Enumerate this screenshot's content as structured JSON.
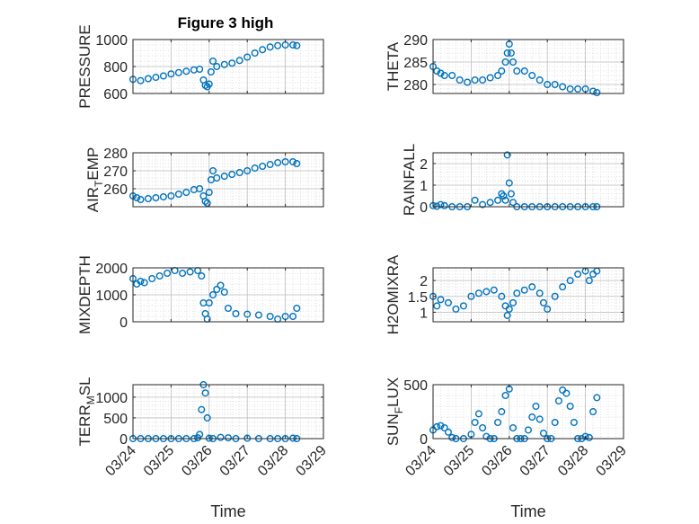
{
  "figure": {
    "title": "Figure 3 high"
  },
  "style": {
    "marker_color": "#0072BD",
    "axis_color": "#262626",
    "grid_color": "#d9d9d9"
  },
  "chart_data": [
    {
      "type": "scatter",
      "title": "Figure 3 high",
      "ylabel": "PRESSURE",
      "ylabel_sub": "",
      "xlabel": "",
      "xlim": [
        0,
        5
      ],
      "ylim": [
        600,
        1000
      ],
      "yticks": [
        600,
        800,
        1000
      ],
      "ytick_labels": [
        "600",
        "800",
        "1000"
      ],
      "xticks": [
        0,
        1,
        2,
        3,
        4,
        5
      ],
      "xtick_labels": [],
      "grid": true,
      "series": [
        {
          "x": [
            0.0,
            0.2,
            0.4,
            0.6,
            0.8,
            1.0,
            1.2,
            1.4,
            1.6,
            1.75,
            1.85,
            1.9,
            1.95,
            2.0,
            2.05,
            2.1,
            2.2,
            2.4,
            2.6,
            2.8,
            3.0,
            3.2,
            3.4,
            3.6,
            3.8,
            4.0,
            4.2,
            4.3
          ],
          "y": [
            705,
            695,
            710,
            720,
            730,
            745,
            755,
            765,
            775,
            780,
            700,
            660,
            650,
            670,
            760,
            840,
            800,
            815,
            825,
            845,
            870,
            900,
            925,
            945,
            955,
            960,
            960,
            955
          ]
        }
      ]
    },
    {
      "type": "scatter",
      "title": "",
      "ylabel": "THETA",
      "ylabel_sub": "",
      "xlabel": "",
      "xlim": [
        0,
        5
      ],
      "ylim": [
        278,
        290
      ],
      "yticks": [
        280,
        285,
        290
      ],
      "ytick_labels": [
        "280",
        "285",
        "290"
      ],
      "xticks": [
        0,
        1,
        2,
        3,
        4,
        5
      ],
      "xtick_labels": [],
      "grid": true,
      "series": [
        {
          "x": [
            0.0,
            0.1,
            0.2,
            0.3,
            0.5,
            0.7,
            0.9,
            1.1,
            1.3,
            1.5,
            1.7,
            1.8,
            1.9,
            1.95,
            2.0,
            2.05,
            2.1,
            2.2,
            2.4,
            2.6,
            2.8,
            3.0,
            3.2,
            3.4,
            3.6,
            3.8,
            4.0,
            4.2,
            4.3
          ],
          "y": [
            284,
            283,
            282.5,
            282,
            282,
            281,
            280.5,
            281,
            281,
            281.5,
            282,
            283,
            285,
            287,
            289,
            287,
            285,
            283,
            283,
            282,
            281,
            280,
            280,
            279.5,
            279,
            279,
            279,
            278.5,
            278.2
          ]
        }
      ]
    },
    {
      "type": "scatter",
      "title": "",
      "ylabel": "AIR",
      "ylabel_sub": "T",
      "ylabel_rest": "EMP",
      "xlabel": "",
      "xlim": [
        0,
        5
      ],
      "ylim": [
        250,
        280
      ],
      "yticks": [
        260,
        270,
        280
      ],
      "ytick_labels": [
        "260",
        "270",
        "280"
      ],
      "xticks": [
        0,
        1,
        2,
        3,
        4,
        5
      ],
      "xtick_labels": [],
      "grid": true,
      "series": [
        {
          "x": [
            0.0,
            0.1,
            0.2,
            0.4,
            0.6,
            0.8,
            1.0,
            1.2,
            1.4,
            1.6,
            1.75,
            1.85,
            1.9,
            1.95,
            2.0,
            2.05,
            2.1,
            2.2,
            2.4,
            2.6,
            2.8,
            3.0,
            3.2,
            3.4,
            3.6,
            3.8,
            4.0,
            4.2,
            4.3
          ],
          "y": [
            256,
            255,
            254,
            254.5,
            255,
            255.5,
            256,
            257,
            258,
            259.5,
            260,
            256,
            253,
            252,
            258,
            265,
            270,
            266,
            267,
            268,
            269,
            270,
            271.5,
            272.5,
            273.5,
            274.5,
            275,
            275,
            274
          ]
        }
      ]
    },
    {
      "type": "scatter",
      "title": "",
      "ylabel": "RAINFALL",
      "ylabel_sub": "",
      "xlabel": "",
      "xlim": [
        0,
        5
      ],
      "ylim": [
        0,
        2.5
      ],
      "yticks": [
        0,
        1,
        2
      ],
      "ytick_labels": [
        "0",
        "1",
        "2"
      ],
      "xticks": [
        0,
        1,
        2,
        3,
        4,
        5
      ],
      "xtick_labels": [],
      "grid": true,
      "series": [
        {
          "x": [
            0.0,
            0.1,
            0.2,
            0.3,
            0.5,
            0.7,
            0.9,
            1.1,
            1.3,
            1.5,
            1.7,
            1.8,
            1.85,
            1.9,
            1.95,
            2.0,
            2.05,
            2.1,
            2.2,
            2.4,
            2.6,
            2.8,
            3.0,
            3.2,
            3.4,
            3.6,
            3.8,
            4.0,
            4.2,
            4.3
          ],
          "y": [
            0.05,
            0.02,
            0.1,
            0.05,
            0,
            0,
            0,
            0.3,
            0.1,
            0.2,
            0.3,
            0.6,
            0.5,
            0.3,
            2.4,
            1.1,
            0.6,
            0.2,
            0,
            0,
            0,
            0,
            0,
            0,
            0,
            0,
            0,
            0,
            0,
            0
          ]
        }
      ]
    },
    {
      "type": "scatter",
      "title": "",
      "ylabel": "MIXDEPTH",
      "ylabel_sub": "",
      "xlabel": "",
      "xlim": [
        0,
        5
      ],
      "ylim": [
        0,
        2000
      ],
      "yticks": [
        0,
        1000,
        2000
      ],
      "ytick_labels": [
        "0",
        "1000",
        "2000"
      ],
      "xticks": [
        0,
        1,
        2,
        3,
        4,
        5
      ],
      "xtick_labels": [],
      "grid": true,
      "series": [
        {
          "x": [
            0.0,
            0.1,
            0.2,
            0.3,
            0.5,
            0.7,
            0.9,
            1.1,
            1.3,
            1.5,
            1.7,
            1.8,
            1.85,
            1.9,
            1.95,
            2.0,
            2.1,
            2.2,
            2.3,
            2.4,
            2.5,
            2.7,
            3.0,
            3.3,
            3.6,
            3.8,
            4.0,
            4.2,
            4.3
          ],
          "y": [
            1600,
            1400,
            1500,
            1450,
            1600,
            1700,
            1800,
            1900,
            1800,
            1850,
            1900,
            1700,
            700,
            300,
            100,
            700,
            1000,
            1200,
            1350,
            1100,
            500,
            300,
            280,
            250,
            200,
            100,
            200,
            200,
            500
          ]
        }
      ]
    },
    {
      "type": "scatter",
      "title": "",
      "ylabel": "H2OMIXRA",
      "ylabel_sub": "",
      "xlabel": "",
      "xlim": [
        0,
        5
      ],
      "ylim": [
        0.7,
        2.4
      ],
      "yticks": [
        1,
        1.5,
        2
      ],
      "ytick_labels": [
        "1",
        "1.5",
        "2"
      ],
      "xticks": [
        0,
        1,
        2,
        3,
        4,
        5
      ],
      "xtick_labels": [],
      "grid": true,
      "series": [
        {
          "x": [
            0.0,
            0.1,
            0.2,
            0.4,
            0.6,
            0.8,
            1.0,
            1.2,
            1.4,
            1.6,
            1.8,
            1.9,
            1.95,
            2.0,
            2.1,
            2.2,
            2.4,
            2.6,
            2.8,
            2.9,
            3.0,
            3.2,
            3.4,
            3.6,
            3.8,
            4.0,
            4.1,
            4.2,
            4.3
          ],
          "y": [
            1.5,
            1.2,
            1.4,
            1.3,
            1.1,
            1.2,
            1.5,
            1.6,
            1.65,
            1.7,
            1.5,
            1.2,
            0.9,
            1.1,
            1.3,
            1.6,
            1.7,
            1.8,
            1.6,
            1.3,
            1.1,
            1.5,
            1.8,
            2.0,
            2.2,
            2.3,
            2.0,
            2.2,
            2.3
          ]
        }
      ]
    },
    {
      "type": "scatter",
      "title": "",
      "ylabel": "TERR",
      "ylabel_sub": "M",
      "ylabel_rest": "SL",
      "xlabel": "Time",
      "xlim": [
        0,
        5
      ],
      "ylim": [
        0,
        1300
      ],
      "yticks": [
        0,
        500,
        1000
      ],
      "ytick_labels": [
        "0",
        "500",
        "1000"
      ],
      "xticks": [
        0,
        1,
        2,
        3,
        4,
        5
      ],
      "xtick_labels": [
        "03/24",
        "03/25",
        "03/26",
        "03/27",
        "03/28",
        "03/29"
      ],
      "grid": true,
      "series": [
        {
          "x": [
            0.0,
            0.2,
            0.4,
            0.6,
            0.8,
            1.0,
            1.2,
            1.4,
            1.6,
            1.7,
            1.75,
            1.8,
            1.85,
            1.9,
            1.95,
            2.0,
            2.1,
            2.3,
            2.5,
            2.7,
            3.0,
            3.3,
            3.6,
            3.8,
            4.0,
            4.2,
            4.3
          ],
          "y": [
            0,
            0,
            0,
            0,
            0,
            0,
            0,
            0,
            0,
            20,
            100,
            700,
            1300,
            1100,
            500,
            10,
            0,
            30,
            20,
            0,
            10,
            0,
            0,
            0,
            0,
            10,
            0
          ]
        }
      ]
    },
    {
      "type": "scatter",
      "title": "",
      "ylabel": "SUN",
      "ylabel_sub": "F",
      "ylabel_rest": "LUX",
      "xlabel": "Time",
      "xlim": [
        0,
        5
      ],
      "ylim": [
        0,
        500
      ],
      "yticks": [
        0,
        500
      ],
      "ytick_labels": [
        "0",
        "500"
      ],
      "xticks": [
        0,
        1,
        2,
        3,
        4,
        5
      ],
      "xtick_labels": [
        "03/24",
        "03/25",
        "03/26",
        "03/27",
        "03/28",
        "03/29"
      ],
      "grid": true,
      "series": [
        {
          "x": [
            0.0,
            0.1,
            0.2,
            0.3,
            0.4,
            0.5,
            0.6,
            0.8,
            1.0,
            1.1,
            1.2,
            1.3,
            1.4,
            1.5,
            1.6,
            1.7,
            1.8,
            1.9,
            2.0,
            2.1,
            2.2,
            2.3,
            2.4,
            2.5,
            2.6,
            2.7,
            2.8,
            2.9,
            3.0,
            3.1,
            3.2,
            3.3,
            3.4,
            3.5,
            3.6,
            3.7,
            3.8,
            3.9,
            4.0,
            4.1,
            4.2,
            4.3
          ],
          "y": [
            80,
            110,
            120,
            100,
            60,
            10,
            0,
            0,
            40,
            150,
            230,
            100,
            20,
            0,
            0,
            150,
            250,
            400,
            460,
            100,
            0,
            0,
            0,
            80,
            200,
            300,
            180,
            50,
            0,
            0,
            150,
            350,
            450,
            420,
            300,
            150,
            0,
            0,
            20,
            10,
            250,
            380
          ]
        }
      ]
    }
  ]
}
